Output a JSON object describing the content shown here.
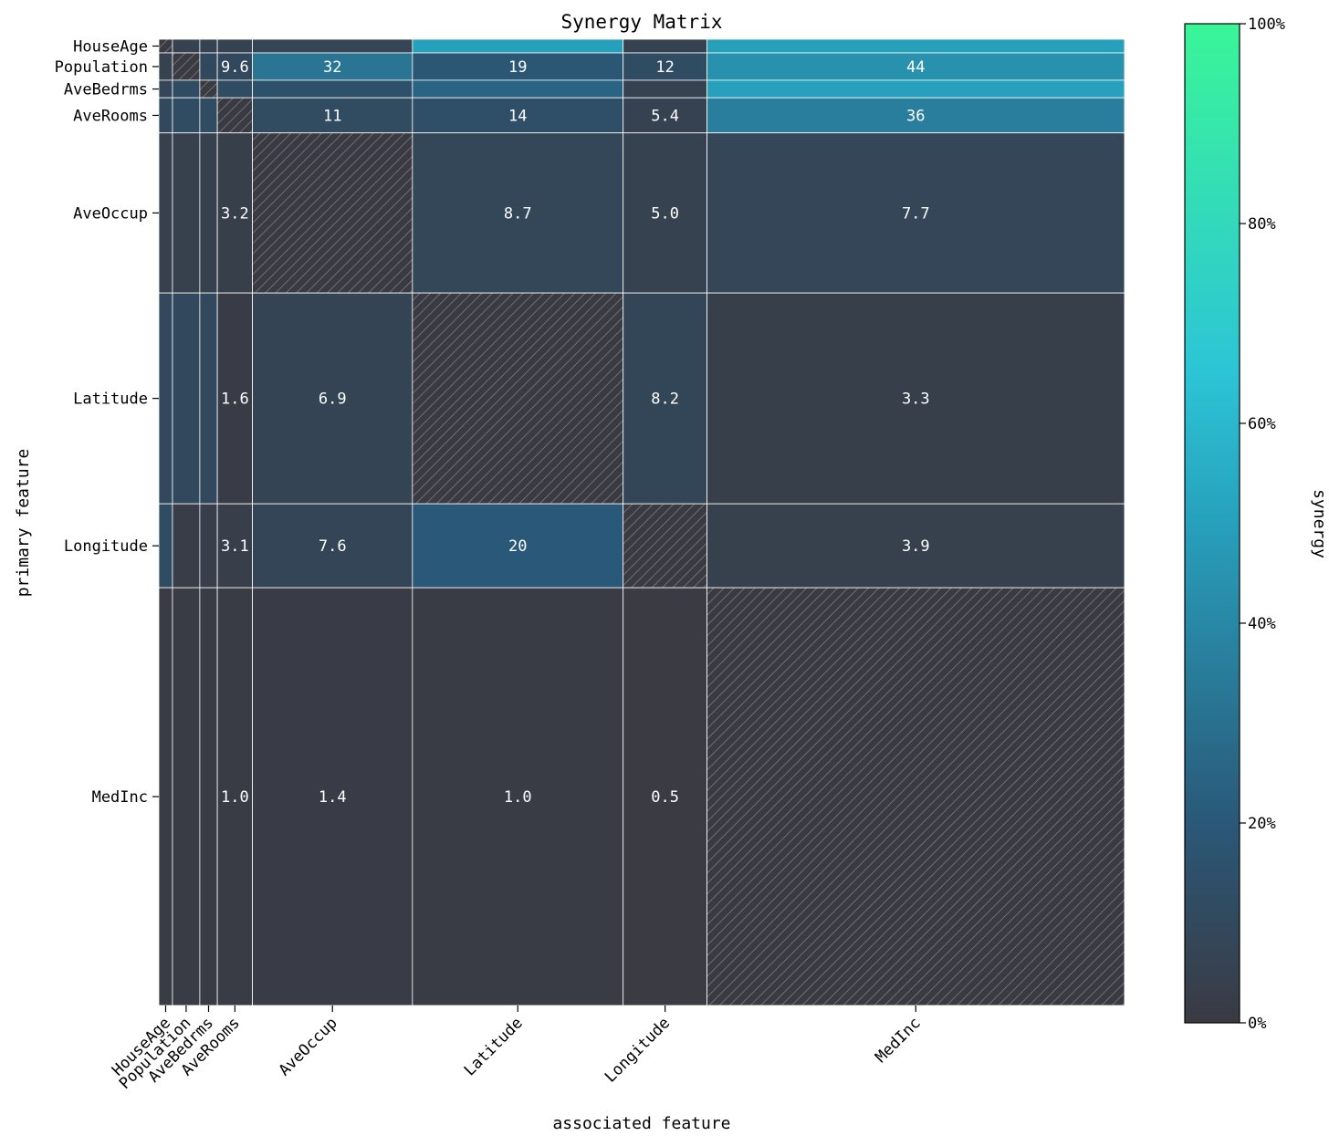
{
  "chart_data": {
    "type": "heatmap",
    "title": "Synergy Matrix",
    "xlabel": "associated feature",
    "ylabel": "primary feature",
    "features": [
      "HouseAge",
      "Population",
      "AveBedrms",
      "AveRooms",
      "AveOccup",
      "Latitude",
      "Longitude",
      "MedInc"
    ],
    "cell_weights": [
      0.7,
      1.4,
      0.9,
      1.8,
      8.2,
      10.8,
      4.3,
      21.4
    ],
    "values": [
      [
        null,
        5,
        5,
        5,
        7,
        50,
        5,
        50
      ],
      [
        5,
        null,
        9.6,
        9.6,
        32,
        19,
        12,
        44
      ],
      [
        8,
        12,
        null,
        12,
        15,
        25,
        5,
        50
      ],
      [
        10,
        12,
        12,
        null,
        11,
        14,
        5.4,
        36
      ],
      [
        4,
        4,
        4,
        3.2,
        null,
        8.7,
        5.0,
        7.7
      ],
      [
        10,
        10,
        10,
        1.6,
        6.9,
        null,
        8.2,
        3.3
      ],
      [
        12,
        2,
        3.1,
        3.1,
        7.6,
        20,
        null,
        3.9
      ],
      [
        1,
        1,
        1,
        1.0,
        1.4,
        1.0,
        0.5,
        null
      ]
    ],
    "value_labels": [
      [
        "",
        "",
        "",
        "",
        "",
        "",
        "",
        ""
      ],
      [
        "",
        "",
        "",
        "9.6",
        "32",
        "19",
        "12",
        "44"
      ],
      [
        "",
        "",
        "",
        "",
        "",
        "",
        "",
        ""
      ],
      [
        "",
        "",
        "",
        "",
        "11",
        "14",
        "5.4",
        "36"
      ],
      [
        "",
        "",
        "",
        "3.2",
        "",
        "8.7",
        "5.0",
        "7.7"
      ],
      [
        "",
        "",
        "",
        "1.6",
        "6.9",
        "",
        "8.2",
        "3.3"
      ],
      [
        "",
        "",
        "",
        "3.1",
        "7.6",
        "20",
        "",
        "3.9"
      ],
      [
        "",
        "",
        "",
        "1.0",
        "1.4",
        "1.0",
        "0.5",
        ""
      ]
    ],
    "colorbar": {
      "label": "synergy",
      "range": [
        0,
        100
      ],
      "ticks": [
        "0%",
        "20%",
        "40%",
        "60%",
        "80%",
        "100%"
      ],
      "colors": [
        "#3a3a42",
        "#2a5878",
        "#27a0bc",
        "#2cc4d6",
        "#3af598"
      ]
    },
    "diagonal": "hatched"
  }
}
